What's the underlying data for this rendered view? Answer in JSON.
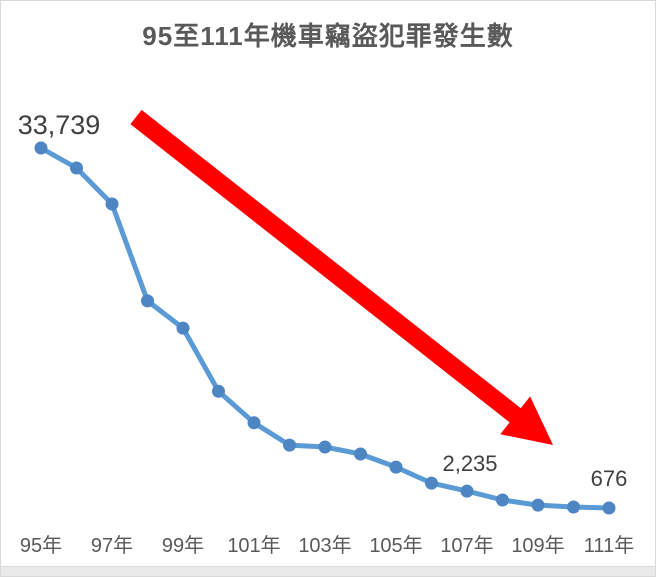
{
  "chart_data": {
    "type": "line",
    "title": "95至111年機車竊盜犯罪發生數",
    "categories": [
      "95年",
      "96年",
      "97年",
      "98年",
      "99年",
      "100年",
      "101年",
      "102年",
      "103年",
      "104年",
      "105年",
      "106年",
      "107年",
      "108年",
      "109年",
      "110年",
      "111年"
    ],
    "values": [
      33739,
      31900,
      28600,
      19700,
      17200,
      11400,
      8500,
      6460,
      6280,
      5640,
      4440,
      2970,
      2235,
      1410,
      950,
      770,
      676
    ],
    "labeled_points": [
      {
        "category": "95年",
        "value": 33739,
        "label": "33,739"
      },
      {
        "category": "107年",
        "value": 2235,
        "label": "2,235"
      },
      {
        "category": "111年",
        "value": 676,
        "label": "676"
      }
    ],
    "x_tick_labels": [
      "95年",
      "97年",
      "99年",
      "101年",
      "103年",
      "105年",
      "107年",
      "109年",
      "111年"
    ],
    "xlabel": "",
    "ylabel": "",
    "ylim": [
      0,
      34000
    ],
    "grid": false,
    "legend": false,
    "line_color": "#5B9BD5",
    "marker_color": "#4E86C4",
    "annotation_arrow_color": "#FF0000",
    "title_color": "#595959",
    "tick_color": "#595959",
    "data_label_color": "#404040"
  }
}
